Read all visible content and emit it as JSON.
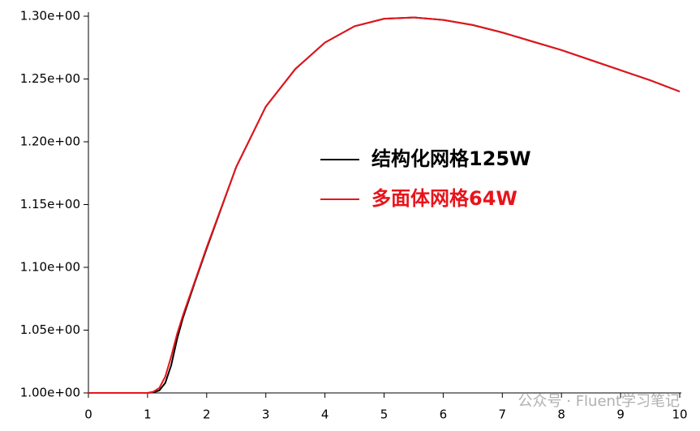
{
  "chart_data": {
    "type": "line",
    "x": [
      0,
      0.5,
      1.0,
      1.1,
      1.2,
      1.3,
      1.4,
      1.5,
      1.6,
      1.8,
      2.0,
      2.5,
      3.0,
      3.5,
      4.0,
      4.5,
      5.0,
      5.5,
      6.0,
      6.5,
      7.0,
      7.5,
      8.0,
      8.5,
      9.0,
      9.5,
      10
    ],
    "series": [
      {
        "name": "结构化网格125W",
        "color": "#000000",
        "values": [
          1.0,
          1.0,
          1.0,
          1.0005,
          1.002,
          1.008,
          1.022,
          1.043,
          1.06,
          1.088,
          1.115,
          1.18,
          1.228,
          1.258,
          1.279,
          1.292,
          1.298,
          1.299,
          1.297,
          1.293,
          1.287,
          1.28,
          1.273,
          1.265,
          1.257,
          1.249,
          1.24
        ]
      },
      {
        "name": "多面体网格64W",
        "color": "#e8141b",
        "values": [
          1.0,
          1.0,
          1.0,
          1.001,
          1.004,
          1.013,
          1.029,
          1.047,
          1.062,
          1.089,
          1.116,
          1.18,
          1.228,
          1.258,
          1.279,
          1.292,
          1.298,
          1.299,
          1.297,
          1.293,
          1.287,
          1.28,
          1.273,
          1.265,
          1.257,
          1.249,
          1.24
        ]
      }
    ],
    "xlim": [
      0,
      10
    ],
    "xticks": [
      0,
      1,
      2,
      3,
      4,
      5,
      6,
      7,
      8,
      9,
      10
    ],
    "ylim": [
      1.0,
      1.3
    ],
    "yticks": [
      {
        "value": 1.0,
        "label": "1.00e+00"
      },
      {
        "value": 1.05,
        "label": "1.05e+00"
      },
      {
        "value": 1.1,
        "label": "1.10e+00"
      },
      {
        "value": 1.15,
        "label": "1.15e+00"
      },
      {
        "value": 1.2,
        "label": "1.20e+00"
      },
      {
        "value": 1.25,
        "label": "1.25e+00"
      },
      {
        "value": 1.3,
        "label": "1.30e+00"
      }
    ],
    "watermark": "公众号 · Fluent学习笔记"
  }
}
